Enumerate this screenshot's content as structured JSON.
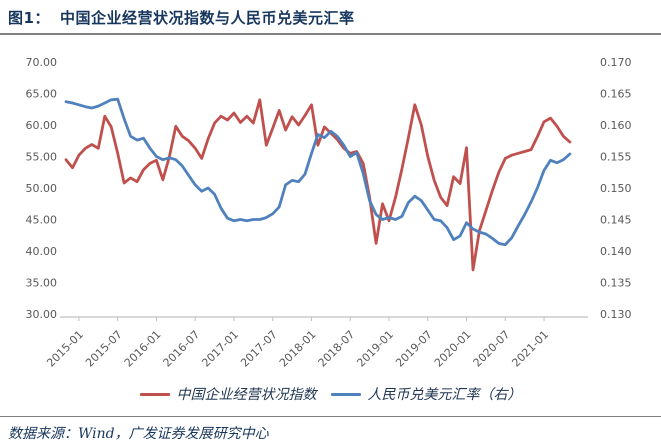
{
  "header": {
    "figure_label": "图1：",
    "figure_title": "中国企业经营状况指数与人民币兑美元汇率"
  },
  "chart_data": {
    "type": "line",
    "title": "中国企业经营状况指数与人民币兑美元汇率",
    "grid": false,
    "legend_position": "bottom",
    "x_tick_labels": [
      "2015-01",
      "2015-07",
      "2016-01",
      "2016-07",
      "2017-01",
      "2017-07",
      "2018-01",
      "2018-07",
      "2019-01",
      "2019-07",
      "2020-01",
      "2020-07",
      "2021-01"
    ],
    "x_tick_every": 6,
    "x_tick_start_index": 2,
    "months": [
      "2014-11",
      "2014-12",
      "2015-01",
      "2015-02",
      "2015-03",
      "2015-04",
      "2015-05",
      "2015-06",
      "2015-07",
      "2015-08",
      "2015-09",
      "2015-10",
      "2015-11",
      "2015-12",
      "2016-01",
      "2016-02",
      "2016-03",
      "2016-04",
      "2016-05",
      "2016-06",
      "2016-07",
      "2016-08",
      "2016-09",
      "2016-10",
      "2016-11",
      "2016-12",
      "2017-01",
      "2017-02",
      "2017-03",
      "2017-04",
      "2017-05",
      "2017-06",
      "2017-07",
      "2017-08",
      "2017-09",
      "2017-10",
      "2017-11",
      "2017-12",
      "2018-01",
      "2018-02",
      "2018-03",
      "2018-04",
      "2018-05",
      "2018-06",
      "2018-07",
      "2018-08",
      "2018-09",
      "2018-10",
      "2018-11",
      "2018-12",
      "2019-01",
      "2019-02",
      "2019-03",
      "2019-04",
      "2019-05",
      "2019-06",
      "2019-07",
      "2019-08",
      "2019-09",
      "2019-10",
      "2019-11",
      "2019-12",
      "2020-01",
      "2020-02",
      "2020-03",
      "2020-04",
      "2020-05",
      "2020-06",
      "2020-07",
      "2020-08",
      "2020-09",
      "2020-10",
      "2020-11",
      "2020-12",
      "2021-01",
      "2021-02",
      "2021-03",
      "2021-04",
      "2021-05"
    ],
    "left_axis": {
      "min": 30,
      "max": 70,
      "step": 5,
      "tick_labels": [
        "70.00",
        "65.00",
        "60.00",
        "55.00",
        "50.00",
        "45.00",
        "40.00",
        "35.00",
        "30.00"
      ]
    },
    "right_axis": {
      "min": 0.13,
      "max": 0.17,
      "step": 0.005,
      "tick_labels": [
        "0.170",
        "0.165",
        "0.160",
        "0.155",
        "0.150",
        "0.145",
        "0.140",
        "0.135",
        "0.130"
      ]
    },
    "series": [
      {
        "name": "中国企业经营状况指数",
        "axis": "left",
        "color": "#C0504D",
        "values": [
          54.5,
          53.2,
          55.2,
          56.3,
          56.9,
          56.3,
          61.4,
          59.7,
          55.5,
          50.8,
          51.6,
          51.0,
          52.9,
          53.9,
          54.4,
          51.3,
          55.0,
          59.8,
          58.2,
          57.5,
          56.3,
          54.7,
          57.8,
          60.3,
          61.4,
          60.8,
          61.9,
          60.4,
          61.4,
          60.3,
          64.0,
          56.8,
          59.5,
          62.3,
          59.2,
          61.3,
          60.0,
          61.5,
          63.2,
          56.8,
          59.7,
          58.7,
          57.7,
          56.3,
          55.5,
          55.8,
          53.9,
          48.5,
          41.2,
          47.5,
          44.8,
          48.5,
          53.0,
          58.0,
          63.2,
          60.0,
          55.0,
          51.2,
          48.5,
          47.2,
          51.8,
          50.7,
          56.4,
          37.0,
          43.2,
          46.4,
          49.6,
          52.5,
          54.7,
          55.2,
          55.5,
          55.8,
          56.1,
          58.2,
          60.5,
          61.1,
          59.8,
          58.2,
          57.3
        ]
      },
      {
        "name": "人民币兑美元汇率（右）",
        "axis": "right",
        "color": "#4F81BD",
        "values": [
          0.1637,
          0.1635,
          0.1632,
          0.1629,
          0.1627,
          0.163,
          0.1635,
          0.164,
          0.1641,
          0.161,
          0.1582,
          0.1576,
          0.1579,
          0.1563,
          0.155,
          0.1545,
          0.1548,
          0.1545,
          0.1535,
          0.152,
          0.1505,
          0.1495,
          0.15,
          0.149,
          0.1468,
          0.1452,
          0.1448,
          0.145,
          0.1448,
          0.145,
          0.145,
          0.1453,
          0.1459,
          0.147,
          0.1505,
          0.1512,
          0.151,
          0.1522,
          0.1555,
          0.1585,
          0.158,
          0.159,
          0.1582,
          0.1568,
          0.155,
          0.1556,
          0.1523,
          0.148,
          0.1458,
          0.145,
          0.1453,
          0.145,
          0.1455,
          0.1477,
          0.1487,
          0.148,
          0.1465,
          0.145,
          0.1448,
          0.1437,
          0.1418,
          0.1424,
          0.1445,
          0.1435,
          0.143,
          0.1427,
          0.142,
          0.1412,
          0.141,
          0.1421,
          0.144,
          0.1458,
          0.1478,
          0.1501,
          0.1528,
          0.1544,
          0.154,
          0.1545,
          0.1554
        ]
      }
    ]
  },
  "footer": {
    "source": "数据来源：Wind，广发证券发展研究中心"
  },
  "colors": {
    "red_series": "#C0504D",
    "blue_series": "#4F81BD",
    "title_text": "#17365D",
    "axis_text": "#595959",
    "axis_line": "#BFBFBF",
    "rule_line": "#7F7F7F"
  }
}
